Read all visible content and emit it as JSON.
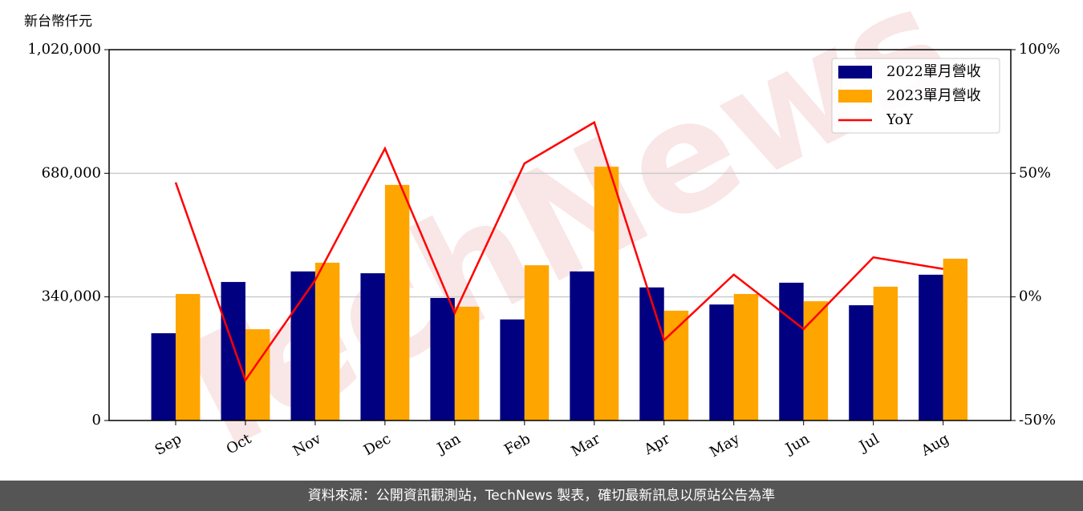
{
  "chart_data": {
    "type": "bar-line",
    "y_label": "新台幣仟元",
    "watermark": "TechNews",
    "categories": [
      "Sep",
      "Oct",
      "Nov",
      "Dec",
      "Jan",
      "Feb",
      "Mar",
      "Apr",
      "May",
      "Jun",
      "Jul",
      "Aug"
    ],
    "series": [
      {
        "name": "2022單月營收",
        "color": "#000080",
        "type": "bar",
        "values": [
          240000,
          381000,
          410000,
          405000,
          337000,
          278000,
          410000,
          366000,
          319000,
          379000,
          317000,
          401000
        ]
      },
      {
        "name": "2023單月營收",
        "color": "#ffa500",
        "type": "bar",
        "values": [
          348000,
          251000,
          434000,
          648000,
          313000,
          427000,
          698000,
          302000,
          348000,
          328000,
          368000,
          445000
        ]
      },
      {
        "name": "YoY",
        "color": "#ff0000",
        "type": "line",
        "axis": "y2",
        "values": [
          46.3,
          -33.7,
          6.8,
          60,
          -6.5,
          54,
          70.6,
          -17.5,
          9,
          -13,
          16,
          11.3
        ]
      }
    ],
    "ylim": [
      0,
      1020000
    ],
    "yticks": [
      0,
      {
        "value": 340000,
        "label": "340,000"
      },
      {
        "value": 680000,
        "label": "680,000"
      },
      {
        "value": 1020000,
        "label": "1,020,000"
      }
    ],
    "y2lim": [
      -50,
      100
    ],
    "y2ticks": [
      {
        "value": -50,
        "label": "-50%"
      },
      {
        "value": 0,
        "label": "0%"
      },
      {
        "value": 50,
        "label": "50%"
      },
      {
        "value": 100,
        "label": "100%"
      }
    ],
    "grid": true,
    "legend": "upper right"
  },
  "footer": "資料來源：公開資訊觀測站，TechNews 製表，確切最新訊息以原站公告為準"
}
